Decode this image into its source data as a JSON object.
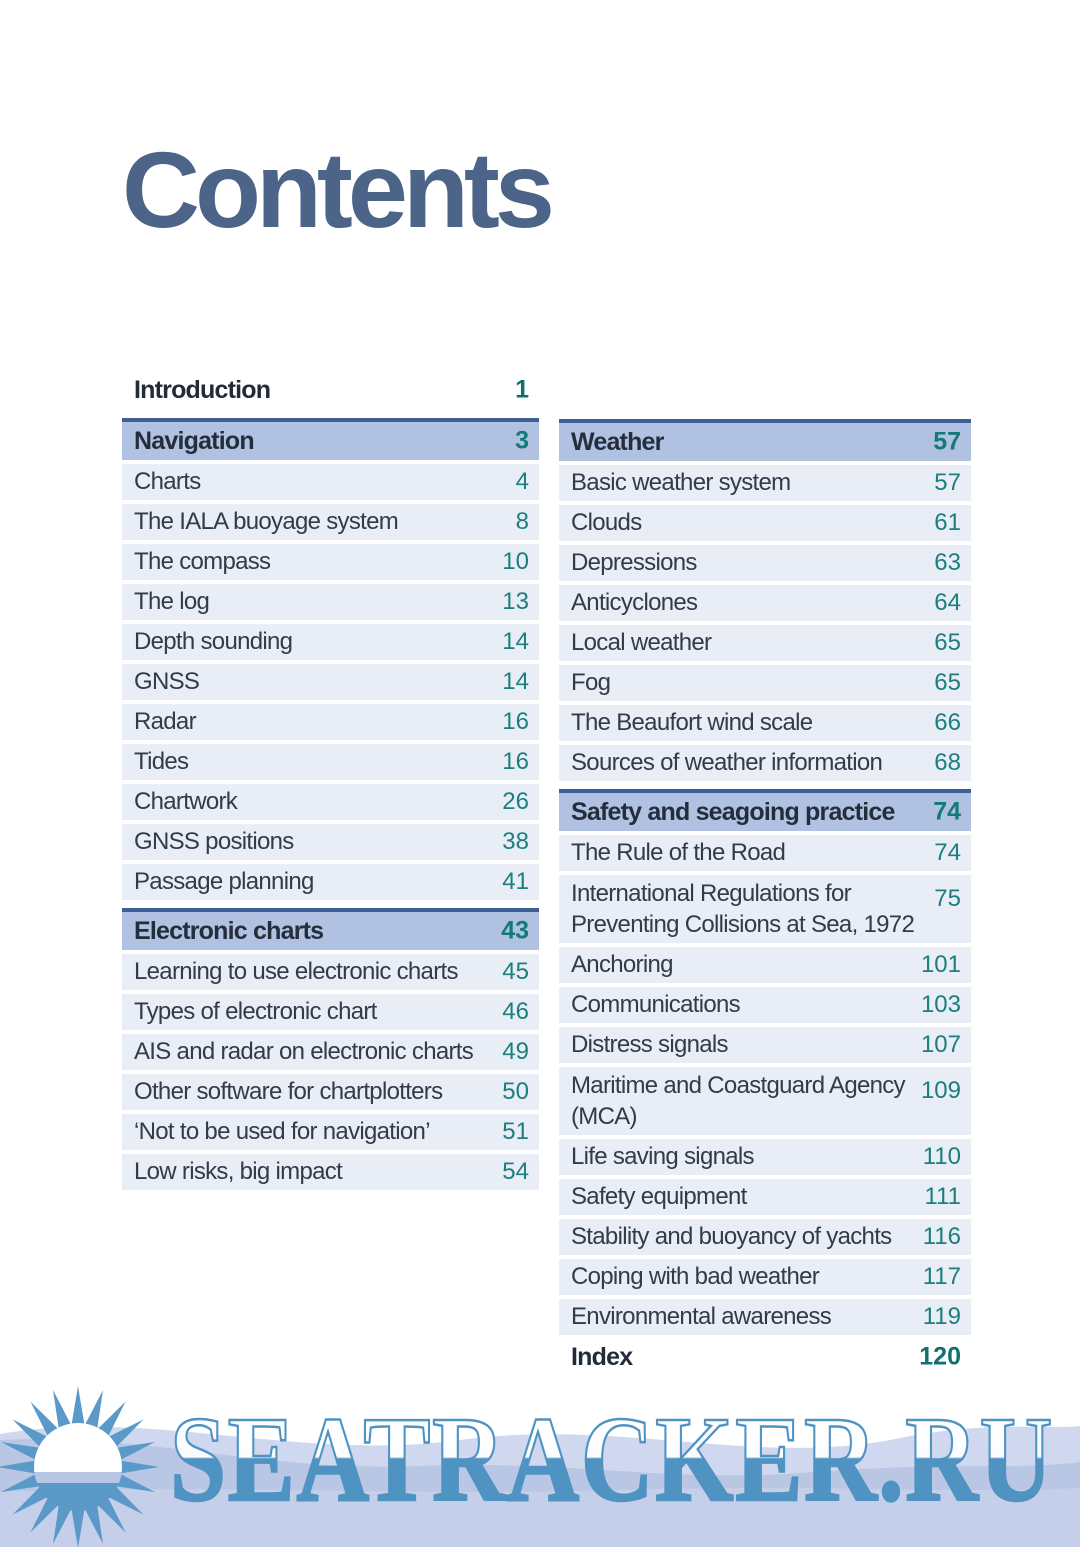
{
  "page": {
    "title": "Contents"
  },
  "toc": {
    "columns": [
      {
        "blocks": [
          {
            "type": "plain",
            "label": "Introduction",
            "page": "1"
          },
          {
            "type": "header",
            "label": "Navigation",
            "page": "3"
          },
          {
            "type": "item",
            "label": "Charts",
            "page": "4"
          },
          {
            "type": "item",
            "label": "The IALA buoyage system",
            "page": "8"
          },
          {
            "type": "item",
            "label": "The compass",
            "page": "10"
          },
          {
            "type": "item",
            "label": "The log",
            "page": "13"
          },
          {
            "type": "item",
            "label": "Depth sounding",
            "page": "14"
          },
          {
            "type": "item",
            "label": "GNSS",
            "page": "14"
          },
          {
            "type": "item",
            "label": "Radar",
            "page": "16"
          },
          {
            "type": "item",
            "label": "Tides",
            "page": "16"
          },
          {
            "type": "item",
            "label": "Chartwork",
            "page": "26"
          },
          {
            "type": "item",
            "label": "GNSS positions",
            "page": "38"
          },
          {
            "type": "item",
            "label": "Passage planning",
            "page": "41"
          },
          {
            "type": "header",
            "label": "Electronic charts",
            "page": "43"
          },
          {
            "type": "item",
            "label": "Learning to use electronic charts",
            "page": "45"
          },
          {
            "type": "item",
            "label": "Types of electronic chart",
            "page": "46"
          },
          {
            "type": "item",
            "label": "AIS and radar on electronic charts",
            "page": "49"
          },
          {
            "type": "item",
            "label": "Other software for chartplotters",
            "page": "50"
          },
          {
            "type": "item",
            "label": "‘Not to be used for navigation’",
            "page": "51"
          },
          {
            "type": "item",
            "label": "Low risks, big impact",
            "page": "54"
          }
        ]
      },
      {
        "blocks": [
          {
            "type": "header",
            "label": "Weather",
            "page": "57"
          },
          {
            "type": "item",
            "label": "Basic weather system",
            "page": "57"
          },
          {
            "type": "item",
            "label": "Clouds",
            "page": "61"
          },
          {
            "type": "item",
            "label": "Depressions",
            "page": "63"
          },
          {
            "type": "item",
            "label": "Anticyclones",
            "page": "64"
          },
          {
            "type": "item",
            "label": "Local weather",
            "page": "65"
          },
          {
            "type": "item",
            "label": "Fog",
            "page": "65"
          },
          {
            "type": "item",
            "label": "The Beaufort wind scale",
            "page": "66"
          },
          {
            "type": "item",
            "label": "Sources of weather information",
            "page": "68"
          },
          {
            "type": "header",
            "label": "Safety and seagoing practice",
            "page": "74"
          },
          {
            "type": "item",
            "label": "The Rule of the Road",
            "page": "74"
          },
          {
            "type": "item2",
            "label": "International Regulations for\nPreventing Collisions at Sea, 1972",
            "page": "75"
          },
          {
            "type": "item",
            "label": "Anchoring",
            "page": "101"
          },
          {
            "type": "item",
            "label": "Communications",
            "page": "103"
          },
          {
            "type": "item",
            "label": "Distress signals",
            "page": "107"
          },
          {
            "type": "item2",
            "label": "Maritime and Coastguard Agency\n(MCA)",
            "page": "109"
          },
          {
            "type": "item",
            "label": "Life saving signals",
            "page": "110"
          },
          {
            "type": "item",
            "label": "Safety equipment",
            "page": "111"
          },
          {
            "type": "item",
            "label": "Stability and buoyancy of yachts",
            "page": "116"
          },
          {
            "type": "item",
            "label": "Coping with bad weather",
            "page": "117"
          },
          {
            "type": "item",
            "label": "Environmental awareness",
            "page": "119"
          },
          {
            "type": "plain",
            "label": "Index",
            "page": "120"
          }
        ]
      }
    ]
  },
  "watermark": {
    "text": "SEATRACKER.RU",
    "logo": "sun-logo"
  },
  "colors": {
    "title": "#4b6487",
    "section_header_bg": "#b0c1e1",
    "section_header_border": "#3d5f94",
    "row_bg": "#e9edf6",
    "entry_text": "#333b47",
    "page_number_teal": "#1a7f7d",
    "watermark_blue": "#4f93c3",
    "sun_blue": "#5b9ac8",
    "wave_light": "#cfd8ee",
    "wave_mid": "#b9c6e4",
    "wave_bottom": "#c5cfe9"
  }
}
